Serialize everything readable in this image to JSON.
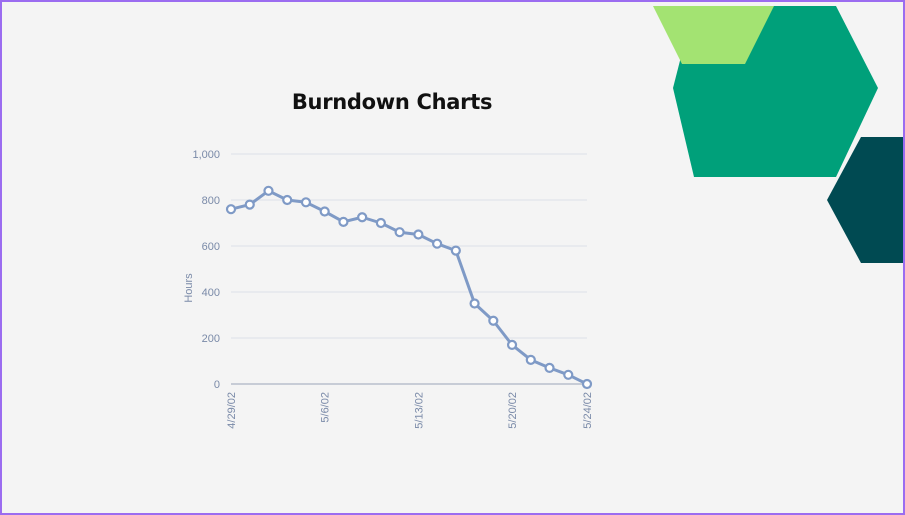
{
  "slide": {
    "title": "Burndown Charts"
  },
  "colors": {
    "border": "#9b6cf0",
    "background": "#f4f4f4",
    "line": "#7f9ac6",
    "axis_text": "#7a8aa8",
    "hex_green_main": "#00a07a",
    "hex_green_light": "#a3e372",
    "hex_dark_teal": "#004a52"
  },
  "chart_data": {
    "type": "line",
    "title": "Burndown Charts",
    "xlabel": "",
    "ylabel": "Hours",
    "ylim": [
      0,
      1000
    ],
    "yticks": [
      0,
      200,
      400,
      600,
      800,
      1000
    ],
    "ytick_labels": [
      "0",
      "200",
      "400",
      "600",
      "800",
      "1,000"
    ],
    "xtick_labels": [
      "4/29/02",
      "5/6/02",
      "5/13/02",
      "5/20/02",
      "5/24/02"
    ],
    "grid": true,
    "series": [
      {
        "values": [
          760,
          780,
          840,
          800,
          790,
          750,
          705,
          725,
          700,
          660,
          650,
          610,
          580,
          350,
          275,
          170,
          105,
          70,
          40,
          0
        ]
      }
    ]
  }
}
